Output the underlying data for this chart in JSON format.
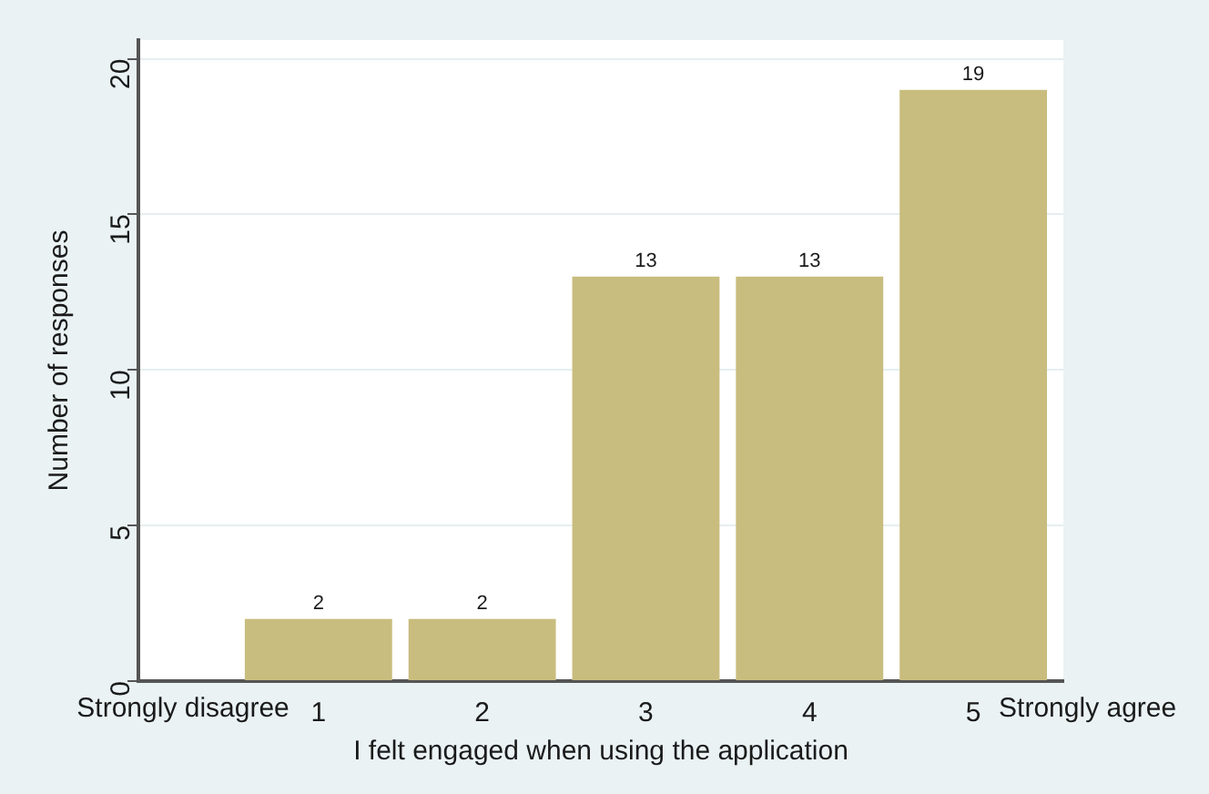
{
  "chart_data": {
    "type": "bar",
    "x": [
      1,
      2,
      3,
      4,
      5
    ],
    "values": [
      2,
      2,
      13,
      13,
      19
    ],
    "color": "#c8bd7e",
    "xlim": [
      -0.1,
      5.55
    ],
    "xticks": [
      1,
      2,
      3,
      4,
      5
    ],
    "ylim": [
      0,
      20.6
    ],
    "yticks": [
      0,
      5,
      10,
      15,
      20
    ],
    "xlabel": "I felt engaged when using the application",
    "ylabel": "Number of responses",
    "annotations": [
      "Strongly disagree",
      "Strongly agree"
    ],
    "data_labels": true,
    "grid": "y",
    "legend": false
  }
}
